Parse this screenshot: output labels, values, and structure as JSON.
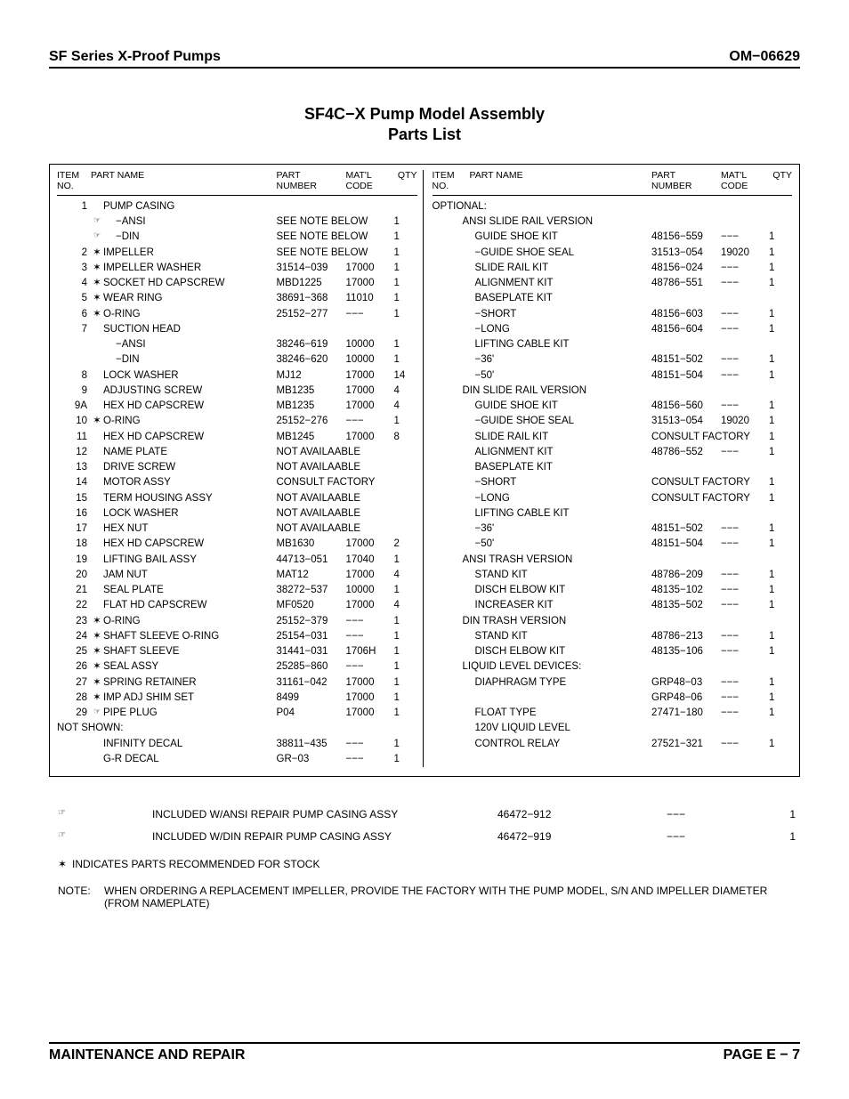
{
  "header": {
    "left": "SF Series X-Proof Pumps",
    "right": "OM−06629"
  },
  "title_line1": "SF4C−X Pump Model Assembly",
  "title_line2": "Parts List",
  "col_headers": {
    "item_no": "ITEM\nNO.",
    "part_name": "PART NAME",
    "part_number": "PART\nNUMBER",
    "matl_code": "MAT'L\nCODE",
    "qty": "QTY"
  },
  "left_rows": [
    {
      "no": "1",
      "mark": "",
      "name": "PUMP CASING",
      "pn": "",
      "mat": "",
      "qty": ""
    },
    {
      "no": "",
      "mark": "☞",
      "name": "−ANSI",
      "pn": "SEE NOTE BELOW",
      "mat": "",
      "qty": "1",
      "wide_pn": true,
      "indent": "1"
    },
    {
      "no": "",
      "mark": "☞",
      "name": "−DIN",
      "pn": "SEE NOTE BELOW",
      "mat": "",
      "qty": "1",
      "wide_pn": true,
      "indent": "1"
    },
    {
      "no": "2",
      "mark": "✶",
      "name": "IMPELLER",
      "pn": "SEE NOTE BELOW",
      "mat": "",
      "qty": "1",
      "wide_pn": true
    },
    {
      "no": "3",
      "mark": "✶",
      "name": "IMPELLER WASHER",
      "pn": "31514−039",
      "mat": "17000",
      "qty": "1"
    },
    {
      "no": "4",
      "mark": "✶",
      "name": "SOCKET HD CAPSCREW",
      "pn": "MBD1225",
      "mat": "17000",
      "qty": "1"
    },
    {
      "no": "5",
      "mark": "✶",
      "name": "WEAR RING",
      "pn": "38691−368",
      "mat": "11010",
      "qty": "1"
    },
    {
      "no": "6",
      "mark": "✶",
      "name": "O-RING",
      "pn": "25152−277",
      "mat": "−−−",
      "qty": "1"
    },
    {
      "no": "7",
      "mark": "",
      "name": "SUCTION HEAD",
      "pn": "",
      "mat": "",
      "qty": ""
    },
    {
      "no": "",
      "mark": "",
      "name": "−ANSI",
      "pn": "38246−619",
      "mat": "10000",
      "qty": "1",
      "indent": "1"
    },
    {
      "no": "",
      "mark": "",
      "name": "−DIN",
      "pn": "38246−620",
      "mat": "10000",
      "qty": "1",
      "indent": "1"
    },
    {
      "no": "8",
      "mark": "",
      "name": "LOCK WASHER",
      "pn": "MJ12",
      "mat": "17000",
      "qty": "14"
    },
    {
      "no": "9",
      "mark": "",
      "name": "ADJUSTING SCREW",
      "pn": "MB1235",
      "mat": "17000",
      "qty": "4"
    },
    {
      "no": "9A",
      "mark": "",
      "name": "HEX HD CAPSCREW",
      "pn": "MB1235",
      "mat": "17000",
      "qty": "4"
    },
    {
      "no": "10",
      "mark": "✶",
      "name": "O-RING",
      "pn": "25152−276",
      "mat": "−−−",
      "qty": "1"
    },
    {
      "no": "11",
      "mark": "",
      "name": "HEX HD CAPSCREW",
      "pn": "MB1245",
      "mat": "17000",
      "qty": "8"
    },
    {
      "no": "12",
      "mark": "",
      "name": "NAME PLATE",
      "pn": "NOT AVAILAABLE",
      "mat": "",
      "qty": "",
      "wide_pn": true
    },
    {
      "no": "13",
      "mark": "",
      "name": "DRIVE SCREW",
      "pn": "NOT AVAILAABLE",
      "mat": "",
      "qty": "",
      "wide_pn": true
    },
    {
      "no": "14",
      "mark": "",
      "name": "MOTOR ASSY",
      "pn": "CONSULT FACTORY",
      "mat": "",
      "qty": "",
      "wide_pn": true
    },
    {
      "no": "15",
      "mark": "",
      "name": "TERM HOUSING ASSY",
      "pn": "NOT AVAILAABLE",
      "mat": "",
      "qty": "",
      "wide_pn": true
    },
    {
      "no": "16",
      "mark": "",
      "name": "LOCK WASHER",
      "pn": "NOT AVAILAABLE",
      "mat": "",
      "qty": "",
      "wide_pn": true
    },
    {
      "no": "17",
      "mark": "",
      "name": "HEX NUT",
      "pn": "NOT AVAILAABLE",
      "mat": "",
      "qty": "",
      "wide_pn": true
    },
    {
      "no": "18",
      "mark": "",
      "name": "HEX HD CAPSCREW",
      "pn": "MB1630",
      "mat": "17000",
      "qty": "2"
    },
    {
      "no": "19",
      "mark": "",
      "name": "LIFTING BAIL ASSY",
      "pn": "44713−051",
      "mat": "17040",
      "qty": "1"
    },
    {
      "no": "20",
      "mark": "",
      "name": "JAM NUT",
      "pn": "MAT12",
      "mat": "17000",
      "qty": "4"
    },
    {
      "no": "21",
      "mark": "",
      "name": "SEAL PLATE",
      "pn": "38272−537",
      "mat": "10000",
      "qty": "1"
    },
    {
      "no": "22",
      "mark": "",
      "name": "FLAT HD CAPSCREW",
      "pn": "MF0520",
      "mat": "17000",
      "qty": "4"
    },
    {
      "no": "23",
      "mark": "✶",
      "name": "O-RING",
      "pn": "25152−379",
      "mat": "−−−",
      "qty": "1"
    },
    {
      "no": "24",
      "mark": "✶",
      "name": "SHAFT SLEEVE O-RING",
      "pn": "25154−031",
      "mat": "−−−",
      "qty": "1"
    },
    {
      "no": "25",
      "mark": "✶",
      "name": "SHAFT SLEEVE",
      "pn": "31441−031",
      "mat": "1706H",
      "qty": "1"
    },
    {
      "no": "26",
      "mark": "✶",
      "name": "SEAL ASSY",
      "pn": "25285−860",
      "mat": "−−−",
      "qty": "1"
    },
    {
      "no": "27",
      "mark": "✶",
      "name": "SPRING RETAINER",
      "pn": "31161−042",
      "mat": "17000",
      "qty": "1"
    },
    {
      "no": "28",
      "mark": "✶",
      "name": "IMP ADJ SHIM SET",
      "pn": "8499",
      "mat": "17000",
      "qty": "1"
    },
    {
      "no": "29",
      "mark": "☞",
      "name": "PIPE PLUG",
      "pn": "P04",
      "mat": "17000",
      "qty": "1"
    }
  ],
  "not_shown_label": "NOT SHOWN:",
  "not_shown_rows": [
    {
      "no": "",
      "mark": "",
      "name": "INFINITY DECAL",
      "pn": "38811−435",
      "mat": "−−−",
      "qty": "1"
    },
    {
      "no": "",
      "mark": "",
      "name": "G-R DECAL",
      "pn": "GR−03",
      "mat": "−−−",
      "qty": "1"
    }
  ],
  "optional_label": "OPTIONAL:",
  "right_rows": [
    {
      "name": "ANSI SLIDE RAIL VERSION",
      "pn": "",
      "mat": "",
      "qty": "",
      "indent": "1"
    },
    {
      "name": "GUIDE SHOE KIT",
      "pn": "48156−559",
      "mat": "−−−",
      "qty": "1",
      "indent": "2"
    },
    {
      "name": "−GUIDE SHOE SEAL",
      "pn": "31513−054",
      "mat": "19020",
      "qty": "1",
      "indent": "2"
    },
    {
      "name": "SLIDE RAIL KIT",
      "pn": "48156−024",
      "mat": "−−−",
      "qty": "1",
      "indent": "2"
    },
    {
      "name": "ALIGNMENT KIT",
      "pn": "48786−551",
      "mat": "−−−",
      "qty": "1",
      "indent": "2"
    },
    {
      "name": "BASEPLATE KIT",
      "pn": "",
      "mat": "",
      "qty": "",
      "indent": "2"
    },
    {
      "name": "−SHORT",
      "pn": "48156−603",
      "mat": "−−−",
      "qty": "1",
      "indent": "2"
    },
    {
      "name": "−LONG",
      "pn": "48156−604",
      "mat": "−−−",
      "qty": "1",
      "indent": "2"
    },
    {
      "name": "LIFTING CABLE KIT",
      "pn": "",
      "mat": "",
      "qty": "",
      "indent": "2"
    },
    {
      "name": "−36'",
      "pn": "48151−502",
      "mat": "−−−",
      "qty": "1",
      "indent": "2"
    },
    {
      "name": "−50'",
      "pn": "48151−504",
      "mat": "−−−",
      "qty": "1",
      "indent": "2"
    },
    {
      "name": "DIN SLIDE RAIL VERSION",
      "pn": "",
      "mat": "",
      "qty": "",
      "indent": "1"
    },
    {
      "name": "GUIDE SHOE KIT",
      "pn": "48156−560",
      "mat": "−−−",
      "qty": "1",
      "indent": "2"
    },
    {
      "name": "−GUIDE SHOE SEAL",
      "pn": "31513−054",
      "mat": "19020",
      "qty": "1",
      "indent": "2"
    },
    {
      "name": "SLIDE RAIL KIT",
      "pn": "CONSULT FACTORY",
      "mat": "",
      "qty": "1",
      "indent": "2",
      "wide_pn": true
    },
    {
      "name": "ALIGNMENT KIT",
      "pn": "48786−552",
      "mat": "−−−",
      "qty": "1",
      "indent": "2"
    },
    {
      "name": "BASEPLATE KIT",
      "pn": "",
      "mat": "",
      "qty": "",
      "indent": "2"
    },
    {
      "name": "−SHORT",
      "pn": "CONSULT FACTORY",
      "mat": "",
      "qty": "1",
      "indent": "2",
      "wide_pn": true
    },
    {
      "name": "−LONG",
      "pn": "CONSULT FACTORY",
      "mat": "",
      "qty": "1",
      "indent": "2",
      "wide_pn": true
    },
    {
      "name": "LIFTING CABLE KIT",
      "pn": "",
      "mat": "",
      "qty": "",
      "indent": "2"
    },
    {
      "name": "−36'",
      "pn": "48151−502",
      "mat": "−−−",
      "qty": "1",
      "indent": "2"
    },
    {
      "name": "−50'",
      "pn": "48151−504",
      "mat": "−−−",
      "qty": "1",
      "indent": "2"
    },
    {
      "name": "ANSI TRASH VERSION",
      "pn": "",
      "mat": "",
      "qty": "",
      "indent": "1"
    },
    {
      "name": "STAND KIT",
      "pn": "48786−209",
      "mat": "−−−",
      "qty": "1",
      "indent": "2"
    },
    {
      "name": "DISCH ELBOW KIT",
      "pn": "48135−102",
      "mat": "−−−",
      "qty": "1",
      "indent": "2"
    },
    {
      "name": "INCREASER KIT",
      "pn": "48135−502",
      "mat": "−−−",
      "qty": "1",
      "indent": "2"
    },
    {
      "name": "DIN TRASH VERSION",
      "pn": "",
      "mat": "",
      "qty": "",
      "indent": "1"
    },
    {
      "name": "STAND KIT",
      "pn": "48786−213",
      "mat": "−−−",
      "qty": "1",
      "indent": "2"
    },
    {
      "name": "DISCH ELBOW KIT",
      "pn": "48135−106",
      "mat": "−−−",
      "qty": "1",
      "indent": "2"
    },
    {
      "name": "LIQUID LEVEL DEVICES:",
      "pn": "",
      "mat": "",
      "qty": "",
      "indent": "1"
    },
    {
      "name": "DIAPHRAGM TYPE",
      "pn": "GRP48−03",
      "mat": "−−−",
      "qty": "1",
      "indent": "2"
    },
    {
      "name": "",
      "pn": "GRP48−06",
      "mat": "−−−",
      "qty": "1",
      "indent": "2"
    },
    {
      "name": "FLOAT TYPE",
      "pn": "27471−180",
      "mat": "−−−",
      "qty": "1",
      "indent": "2"
    },
    {
      "name": "120V LIQUID LEVEL",
      "pn": "",
      "mat": "",
      "qty": "",
      "indent": "2"
    },
    {
      "name": "CONTROL RELAY",
      "pn": "27521−321",
      "mat": "−−−",
      "qty": "1",
      "indent": "2"
    }
  ],
  "footer_notes": [
    {
      "ptr": "☞",
      "text": "INCLUDED W/ANSI REPAIR PUMP CASING ASSY",
      "pn": "46472−912",
      "mat": "−−−",
      "qty": "1"
    },
    {
      "ptr": "☞",
      "text": "INCLUDED W/DIN REPAIR PUMP CASING ASSY",
      "pn": "46472−919",
      "mat": "−−−",
      "qty": "1"
    }
  ],
  "star_note": {
    "mark": "✶",
    "text": "INDICATES PARTS RECOMMENDED FOR STOCK"
  },
  "order_note": {
    "label": "NOTE:",
    "text": "WHEN ORDERING A REPLACEMENT IMPELLER, PROVIDE THE FACTORY WITH THE PUMP MODEL, S/N AND IMPELLER DIAMETER (FROM NAMEPLATE)"
  },
  "footer": {
    "left": "MAINTENANCE AND REPAIR",
    "right": "PAGE E − 7"
  }
}
